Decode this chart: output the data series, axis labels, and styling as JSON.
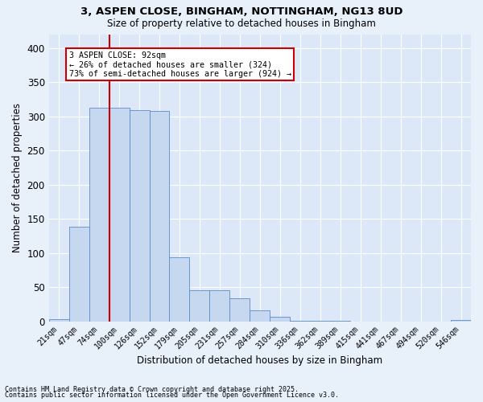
{
  "title1": "3, ASPEN CLOSE, BINGHAM, NOTTINGHAM, NG13 8UD",
  "title2": "Size of property relative to detached houses in Bingham",
  "xlabel": "Distribution of detached houses by size in Bingham",
  "ylabel": "Number of detached properties",
  "categories": [
    "21sqm",
    "47sqm",
    "74sqm",
    "100sqm",
    "126sqm",
    "152sqm",
    "179sqm",
    "205sqm",
    "231sqm",
    "257sqm",
    "284sqm",
    "310sqm",
    "336sqm",
    "362sqm",
    "389sqm",
    "415sqm",
    "441sqm",
    "467sqm",
    "494sqm",
    "520sqm",
    "546sqm"
  ],
  "values": [
    3,
    138,
    312,
    312,
    309,
    308,
    94,
    45,
    45,
    34,
    16,
    6,
    1,
    1,
    1,
    0,
    0,
    0,
    0,
    0,
    2
  ],
  "bar_color": "#c5d8f0",
  "bar_edge_color": "#5b8cc8",
  "bg_color": "#dce8f8",
  "grid_color": "#ffffff",
  "annotation_text": "3 ASPEN CLOSE: 92sqm\n← 26% of detached houses are smaller (324)\n73% of semi-detached houses are larger (924) →",
  "annotation_box_color": "#ffffff",
  "annotation_box_edge": "#cc0000",
  "footer1": "Contains HM Land Registry data © Crown copyright and database right 2025.",
  "footer2": "Contains public sector information licensed under the Open Government Licence v3.0.",
  "ylim": [
    0,
    420
  ],
  "yticks": [
    0,
    50,
    100,
    150,
    200,
    250,
    300,
    350,
    400
  ],
  "vline_pos": 2.5,
  "fig_bg": "#e8f0fa"
}
